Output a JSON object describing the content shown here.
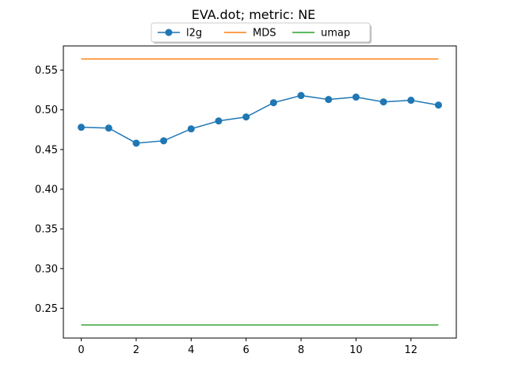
{
  "chart_data": {
    "type": "line",
    "title": "EVA.dot; metric: NE",
    "xlabel": "",
    "ylabel": "",
    "xlim": [
      -0.65,
      13.65
    ],
    "ylim": [
      0.2125,
      0.5805
    ],
    "xticks": [
      0,
      2,
      4,
      6,
      8,
      10,
      12
    ],
    "yticks": [
      0.25,
      0.3,
      0.35,
      0.4,
      0.45,
      0.5,
      0.55
    ],
    "ytick_labels": [
      "0.25",
      "0.30",
      "0.35",
      "0.40",
      "0.45",
      "0.50",
      "0.55"
    ],
    "xtick_labels": [
      "0",
      "2",
      "4",
      "6",
      "8",
      "10",
      "12"
    ],
    "x": [
      0,
      1,
      2,
      3,
      4,
      5,
      6,
      7,
      8,
      9,
      10,
      11,
      12,
      13
    ],
    "series": [
      {
        "name": "l2g",
        "color": "#1f77b4",
        "marker": "circle",
        "values": [
          0.478,
          0.477,
          0.458,
          0.461,
          0.476,
          0.486,
          0.491,
          0.509,
          0.518,
          0.513,
          0.516,
          0.51,
          0.512,
          0.506
        ]
      },
      {
        "name": "MDS",
        "color": "#ff7f0e",
        "marker": "none",
        "values": [
          0.564,
          0.564,
          0.564,
          0.564,
          0.564,
          0.564,
          0.564,
          0.564,
          0.564,
          0.564,
          0.564,
          0.564,
          0.564,
          0.564
        ]
      },
      {
        "name": "umap",
        "color": "#2ca02c",
        "marker": "none",
        "values": [
          0.229,
          0.229,
          0.229,
          0.229,
          0.229,
          0.229,
          0.229,
          0.229,
          0.229,
          0.229,
          0.229,
          0.229,
          0.229,
          0.229
        ]
      }
    ],
    "grid": false,
    "legend_position": "top-center"
  }
}
